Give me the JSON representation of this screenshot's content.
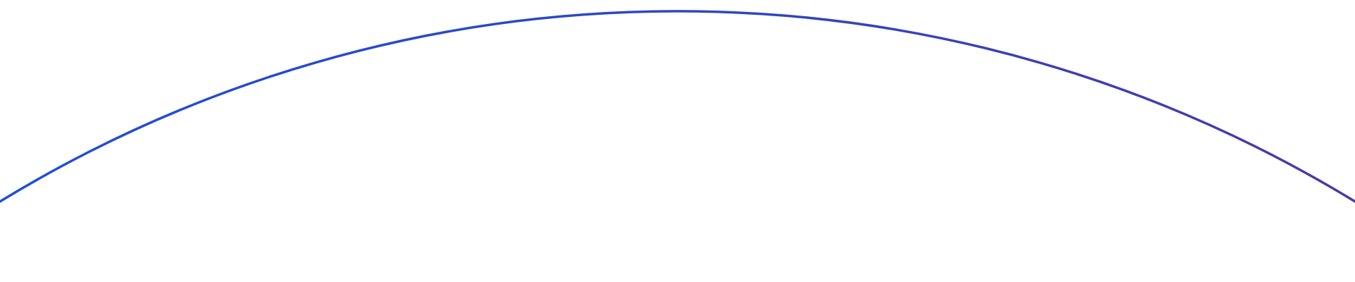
{
  "arc": {
    "gradient_start_color": "#1f4fd6",
    "gradient_mid_color": "#2f46c4",
    "gradient_end_color": "#4a3aa6",
    "background_color": "#ffffff"
  }
}
